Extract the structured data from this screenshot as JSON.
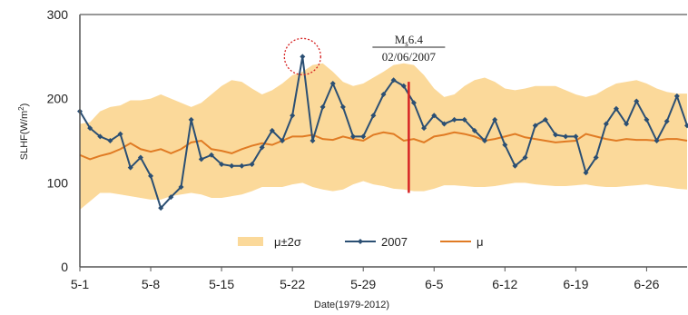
{
  "chart_data": {
    "type": "line",
    "ylabel": "SLHF(W/m²)",
    "xlabel": "Date(1979-2012)",
    "ylim": [
      0,
      300
    ],
    "yticks": [
      0,
      100,
      200,
      300
    ],
    "xticks": [
      {
        "label": "5-1",
        "day": 1
      },
      {
        "label": "5-8",
        "day": 8
      },
      {
        "label": "5-15",
        "day": 15
      },
      {
        "label": "5-22",
        "day": 22
      },
      {
        "label": "5-29",
        "day": 29
      },
      {
        "label": "6-5",
        "day": 36
      },
      {
        "label": "6-12",
        "day": 43
      },
      {
        "label": "6-19",
        "day": 50
      },
      {
        "label": "6-26",
        "day": 57
      }
    ],
    "xlim": [
      1,
      61
    ],
    "x_day_step": 1,
    "series": [
      {
        "name": "μ±2σ",
        "kind": "band",
        "color": "#fbd99a",
        "upper": [
          170,
          172,
          185,
          190,
          192,
          198,
          198,
          200,
          205,
          200,
          195,
          190,
          195,
          205,
          215,
          222,
          220,
          212,
          205,
          210,
          218,
          228,
          232,
          240,
          242,
          232,
          220,
          215,
          218,
          225,
          232,
          240,
          242,
          240,
          228,
          212,
          202,
          205,
          215,
          222,
          225,
          220,
          212,
          210,
          212,
          215,
          215,
          215,
          210,
          205,
          202,
          205,
          212,
          218,
          220,
          222,
          218,
          212,
          208,
          206,
          206
        ],
        "lower": [
          68,
          78,
          88,
          88,
          86,
          84,
          82,
          80,
          80,
          84,
          86,
          88,
          86,
          82,
          82,
          84,
          86,
          90,
          95,
          95,
          95,
          98,
          100,
          95,
          92,
          90,
          92,
          98,
          102,
          98,
          96,
          93,
          92,
          90,
          90,
          93,
          97,
          97,
          96,
          95,
          95,
          96,
          98,
          100,
          100,
          98,
          97,
          96,
          96,
          97,
          98,
          96,
          95,
          95,
          96,
          97,
          98,
          96,
          95,
          93,
          92
        ]
      },
      {
        "name": "2007",
        "kind": "line",
        "color": "#2b4f73",
        "values": [
          185,
          165,
          155,
          150,
          158,
          118,
          130,
          108,
          70,
          83,
          95,
          175,
          128,
          133,
          122,
          120,
          120,
          122,
          142,
          162,
          150,
          180,
          250,
          150,
          190,
          218,
          190,
          155,
          155,
          180,
          205,
          222,
          215,
          195,
          165,
          180,
          170,
          175,
          175,
          162,
          150,
          175,
          145,
          120,
          130,
          168,
          175,
          157,
          155,
          155,
          112,
          130,
          170,
          188,
          170,
          197,
          175,
          150,
          173,
          203,
          168
        ]
      },
      {
        "name": "μ",
        "kind": "line",
        "color": "#e07b24",
        "values": [
          133,
          128,
          132,
          135,
          140,
          147,
          140,
          137,
          140,
          135,
          140,
          148,
          150,
          140,
          138,
          135,
          140,
          144,
          147,
          145,
          150,
          155,
          155,
          157,
          152,
          151,
          155,
          152,
          150,
          157,
          160,
          158,
          150,
          152,
          148,
          155,
          157,
          160,
          158,
          155,
          150,
          152,
          155,
          158,
          154,
          152,
          150,
          148,
          149,
          150,
          158,
          155,
          152,
          150,
          152,
          151,
          151,
          150,
          152,
          152,
          150
        ]
      }
    ],
    "legend": [
      {
        "label": "μ±2σ",
        "series": 0
      },
      {
        "label": "2007",
        "series": 1
      },
      {
        "label": "μ",
        "series": 2
      }
    ],
    "legend_position": "bottom-center",
    "grid": false,
    "annotations": {
      "earthquake": {
        "magnitude": "Ms6.4",
        "date": "02/06/2007",
        "day": 33.5,
        "y_from": 88,
        "y_to": 220,
        "color": "#d62424"
      },
      "highlight": {
        "day": 23,
        "value": 250,
        "color": "#d62424"
      }
    }
  }
}
